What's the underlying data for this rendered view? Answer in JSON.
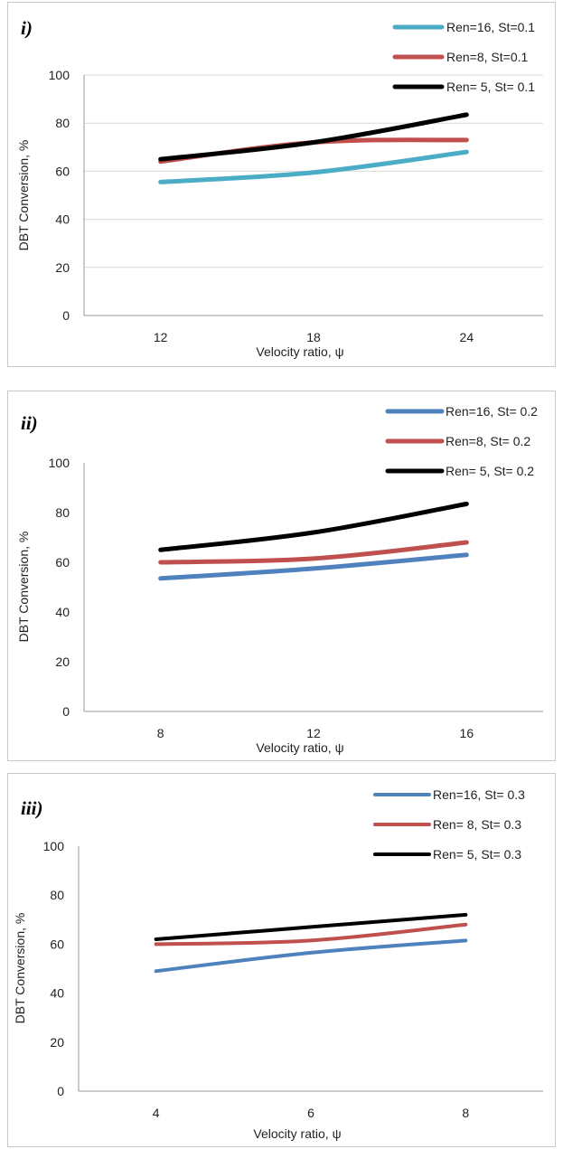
{
  "chart_data": [
    {
      "type": "line",
      "panel_label": "i)",
      "categories": [
        "12",
        "18",
        "24"
      ],
      "series": [
        {
          "name": "Ren=16, St=0.1",
          "color": "#4bacc6",
          "values": [
            55.5,
            59.5,
            68
          ]
        },
        {
          "name": "Ren=8, St=0.1",
          "color": "#c0504d",
          "values": [
            64,
            72,
            73
          ]
        },
        {
          "name": "Ren= 5, St= 0.1",
          "color": "#000000",
          "values": [
            65,
            72,
            83.5
          ]
        }
      ],
      "xlabel": "Velocity ratio, ψ",
      "ylabel": "DBT Conversion, %",
      "ylim": [
        0,
        100
      ],
      "yticks": [
        0,
        20,
        40,
        60,
        80,
        100
      ],
      "grid": true,
      "legend": "top-right"
    },
    {
      "type": "line",
      "panel_label": "ii)",
      "categories": [
        "8",
        "12",
        "16"
      ],
      "series": [
        {
          "name": "Ren=16, St= 0.2",
          "color": "#4f81bd",
          "values": [
            53.5,
            57.5,
            63
          ]
        },
        {
          "name": "Ren=8, St= 0.2",
          "color": "#c0504d",
          "values": [
            60,
            61.5,
            68
          ]
        },
        {
          "name": "Ren= 5, St= 0.2",
          "color": "#000000",
          "values": [
            65,
            72,
            83.5
          ]
        }
      ],
      "xlabel": "Velocity ratio, ψ",
      "ylabel": "DBT Conversion, %",
      "ylim": [
        0,
        100
      ],
      "yticks": [
        0,
        20,
        40,
        60,
        80,
        100
      ],
      "grid": false,
      "legend": "top-right"
    },
    {
      "type": "line",
      "panel_label": "iii)",
      "categories": [
        "4",
        "6",
        "8"
      ],
      "series": [
        {
          "name": "Ren=16, St= 0.3",
          "color": "#4f81bd",
          "values": [
            49,
            56.5,
            61.5
          ]
        },
        {
          "name": "Ren= 8, St= 0.3",
          "color": "#c0504d",
          "values": [
            60,
            61.5,
            68
          ]
        },
        {
          "name": "Ren= 5, St= 0.3",
          "color": "#000000",
          "values": [
            62,
            67,
            72
          ]
        }
      ],
      "xlabel": "Velocity ratio, ψ",
      "ylabel": "DBT Conversion, %",
      "ylim": [
        0,
        100
      ],
      "yticks": [
        0,
        20,
        40,
        60,
        80,
        100
      ],
      "grid": false,
      "legend": "top-right"
    }
  ]
}
